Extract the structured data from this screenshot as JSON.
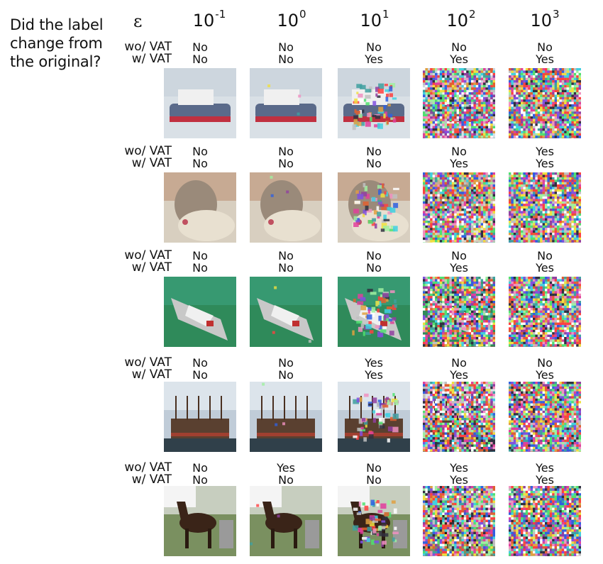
{
  "question": [
    "Did the label",
    "change from",
    "the original?"
  ],
  "epsilon_symbol": "ε",
  "columns": [
    {
      "base": "10",
      "exp": "-1"
    },
    {
      "base": "10",
      "exp": "0"
    },
    {
      "base": "10",
      "exp": "1"
    },
    {
      "base": "10",
      "exp": "2"
    },
    {
      "base": "10",
      "exp": "3"
    }
  ],
  "row_labels": {
    "wo": "wo/ VAT",
    "w": "w/ VAT"
  },
  "rows": [
    {
      "subject": "ship",
      "wo": [
        "No",
        "No",
        "No",
        "No",
        "No"
      ],
      "w": [
        "No",
        "No",
        "Yes",
        "Yes",
        "Yes"
      ]
    },
    {
      "subject": "cat",
      "wo": [
        "No",
        "No",
        "No",
        "No",
        "Yes"
      ],
      "w": [
        "No",
        "No",
        "No",
        "Yes",
        "Yes"
      ]
    },
    {
      "subject": "boat",
      "wo": [
        "No",
        "No",
        "No",
        "No",
        "No"
      ],
      "w": [
        "No",
        "No",
        "No",
        "Yes",
        "Yes"
      ]
    },
    {
      "subject": "ship-dock",
      "wo": [
        "No",
        "No",
        "Yes",
        "No",
        "No"
      ],
      "w": [
        "No",
        "No",
        "Yes",
        "Yes",
        "Yes"
      ]
    },
    {
      "subject": "horse",
      "wo": [
        "No",
        "Yes",
        "No",
        "Yes",
        "Yes"
      ],
      "w": [
        "No",
        "No",
        "No",
        "Yes",
        "Yes"
      ]
    }
  ]
}
